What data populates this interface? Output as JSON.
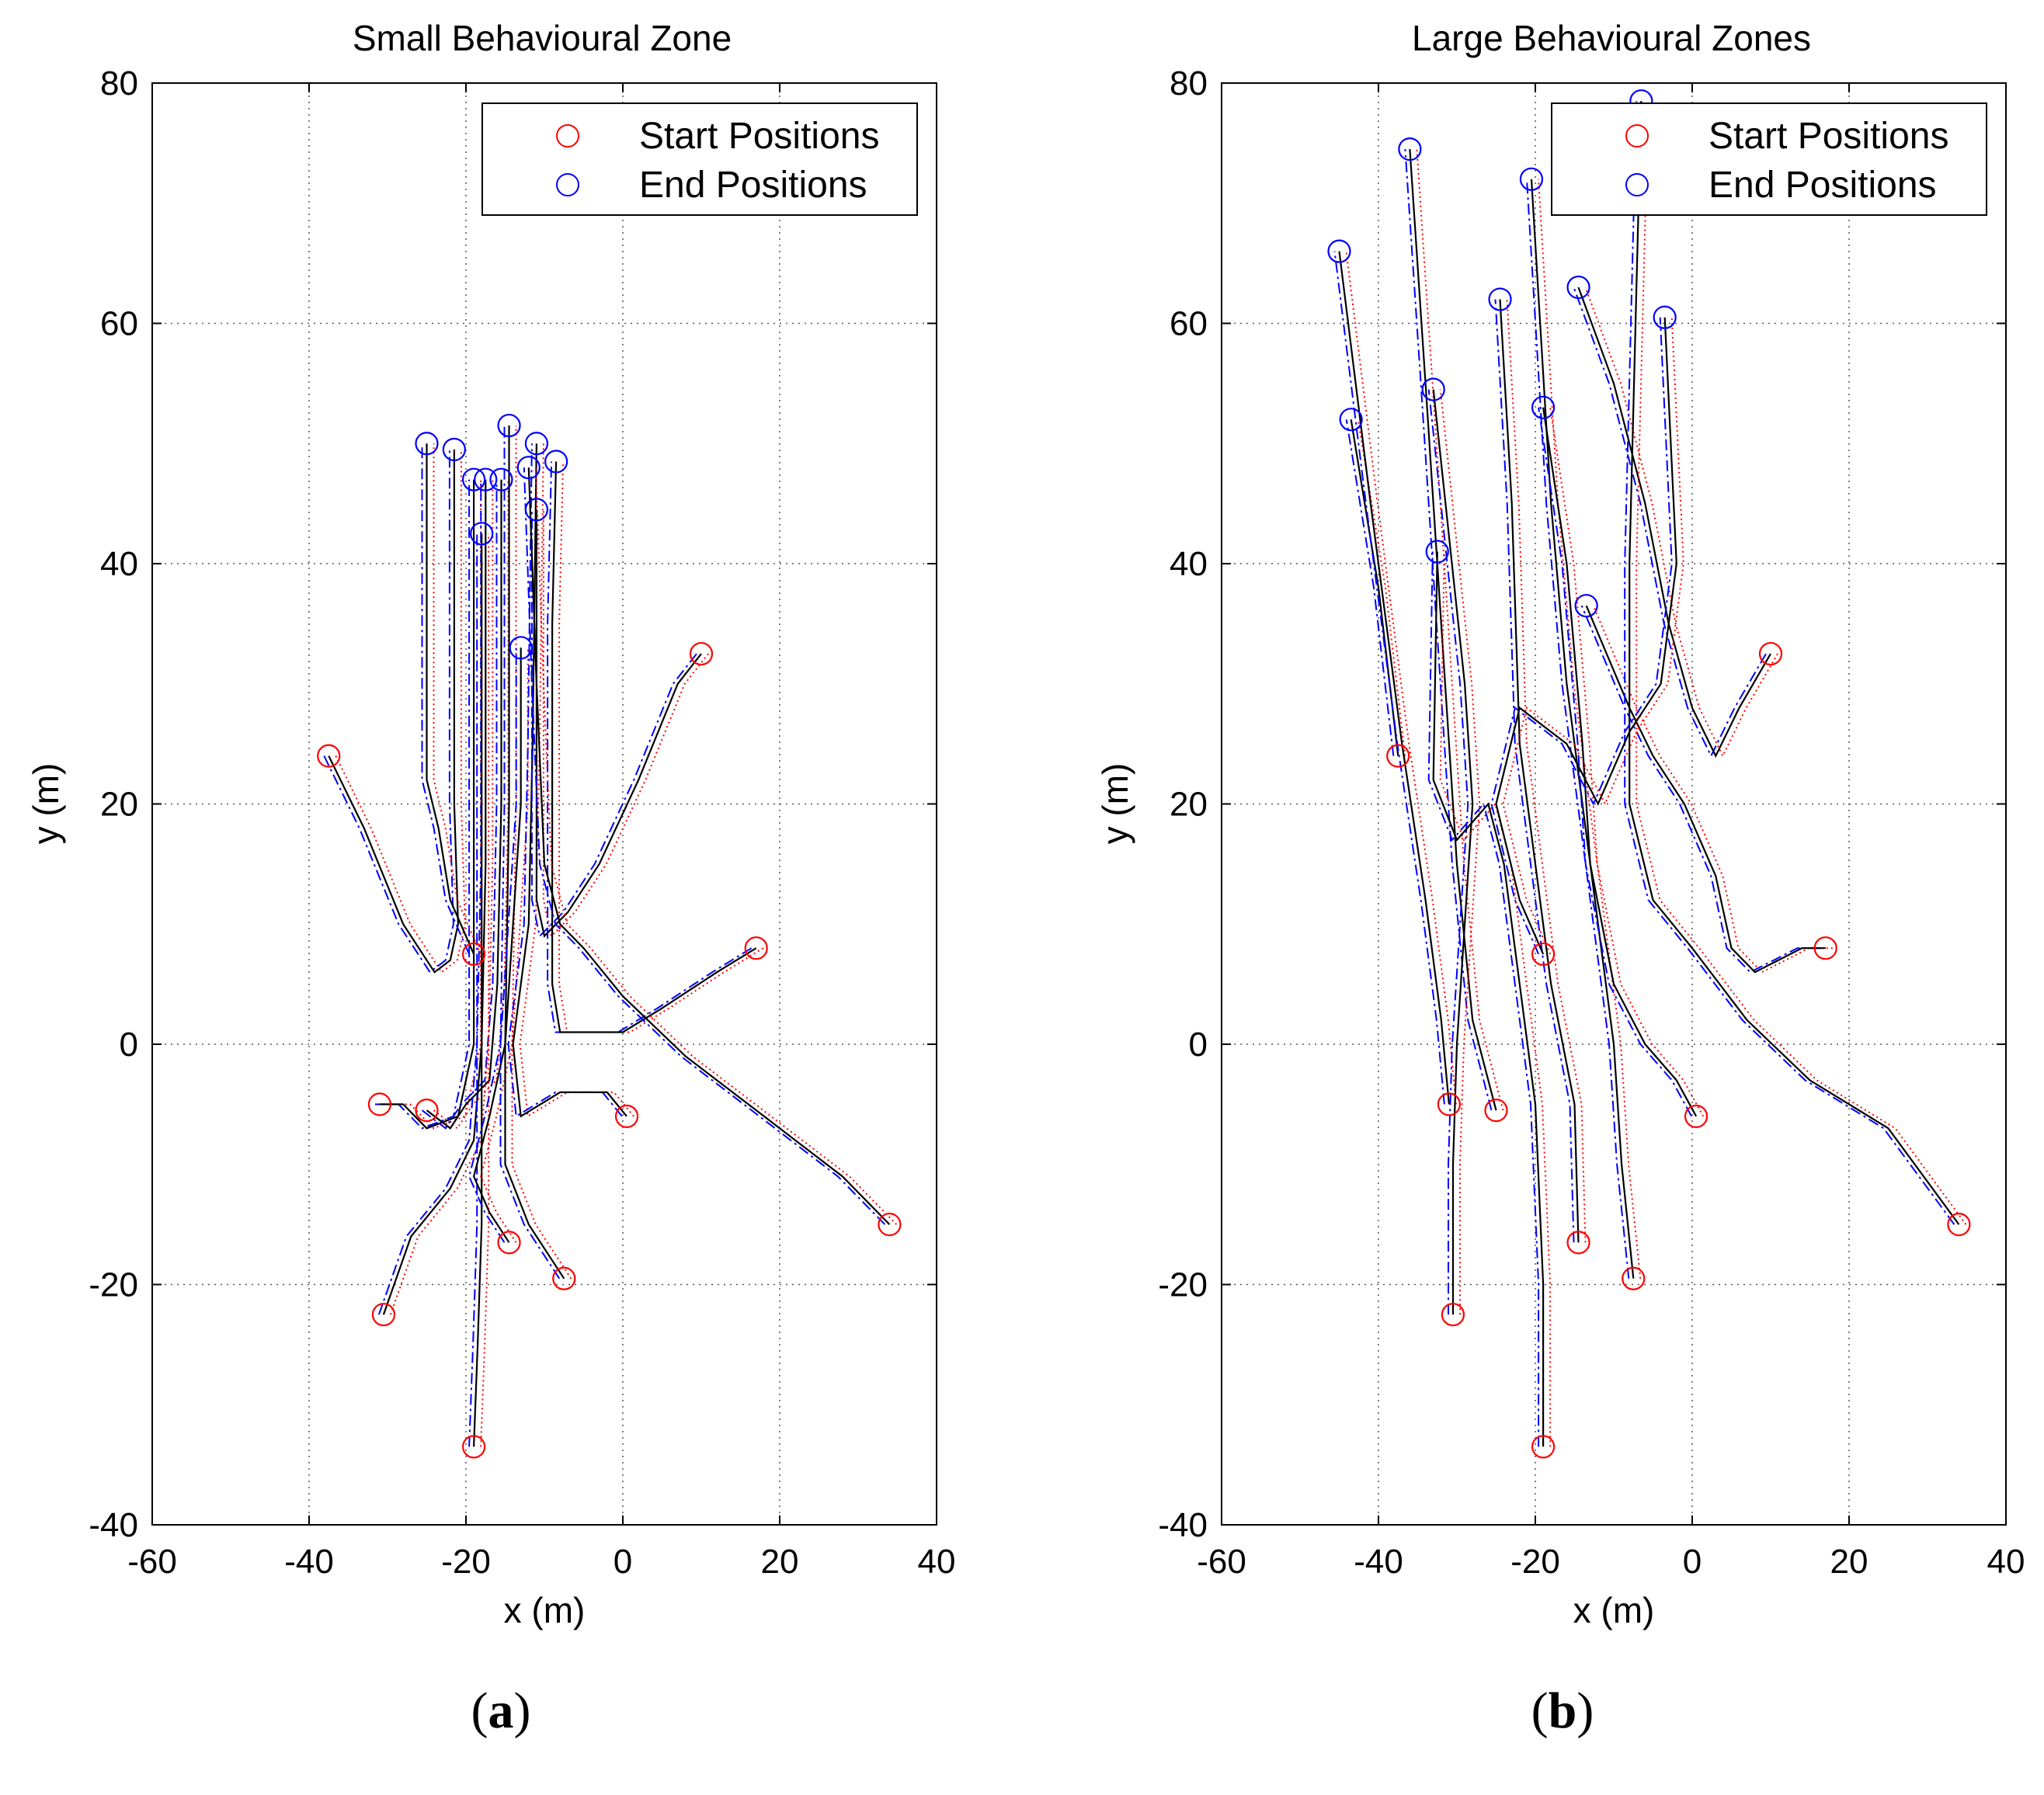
{
  "chart_data": [
    {
      "type": "line",
      "panel_label": "a",
      "title": "Small Behavioural Zone",
      "xlabel": "x (m)",
      "ylabel": "y (m)",
      "xlim": [
        -60,
        40
      ],
      "ylim": [
        -40,
        80
      ],
      "xticks": [
        "-60",
        "-40",
        "-20",
        "0",
        "20",
        "40"
      ],
      "yticks": [
        "-40",
        "-20",
        "0",
        "20",
        "40",
        "60",
        "80"
      ],
      "grid": true,
      "legend": {
        "location": "top-right",
        "entries": [
          "Start Positions",
          "End Positions"
        ]
      },
      "colors": {
        "start": "#ff0000",
        "end": "#0000ff",
        "path_black": "#000000",
        "path_blue": "#0000ff",
        "path_red": "#ff0000"
      },
      "start_positions": [
        [
          -37.5,
          24
        ],
        [
          -31,
          -5
        ],
        [
          -25,
          -5.5
        ],
        [
          -30.5,
          -22.5
        ],
        [
          -19,
          -33.5
        ],
        [
          -14.5,
          -16.5
        ],
        [
          -7.5,
          -19.5
        ],
        [
          0.5,
          -6
        ],
        [
          10,
          32.5
        ],
        [
          17,
          8
        ],
        [
          34,
          -15
        ],
        [
          -19,
          7.5
        ]
      ],
      "end_positions": [
        [
          -25,
          50
        ],
        [
          -21.5,
          49.5
        ],
        [
          -19,
          47
        ],
        [
          -17.5,
          47
        ],
        [
          -15.5,
          47
        ],
        [
          -14.5,
          51.5
        ],
        [
          -12,
          48
        ],
        [
          -11,
          50
        ],
        [
          -8.5,
          48.5
        ],
        [
          -11,
          44.5
        ],
        [
          -18,
          42.5
        ],
        [
          -13,
          33
        ]
      ],
      "trajectories": [
        [
          [
            -37.5,
            24
          ],
          [
            -33,
            18
          ],
          [
            -28,
            10
          ],
          [
            -24,
            6
          ],
          [
            -22,
            7
          ],
          [
            -21,
            10
          ],
          [
            -21.5,
            20
          ],
          [
            -21.5,
            35
          ],
          [
            -21.5,
            49.5
          ]
        ],
        [
          [
            -31,
            -5
          ],
          [
            -28,
            -5
          ],
          [
            -25,
            -7
          ],
          [
            -21,
            -6
          ],
          [
            -19,
            0
          ],
          [
            -19,
            10
          ],
          [
            -19,
            25
          ],
          [
            -19,
            47
          ]
        ],
        [
          [
            -25,
            -5.5
          ],
          [
            -22,
            -7
          ],
          [
            -20,
            -5
          ],
          [
            -17,
            -3
          ],
          [
            -16,
            5
          ],
          [
            -15.5,
            20
          ],
          [
            -15.5,
            35
          ],
          [
            -15.5,
            47
          ]
        ],
        [
          [
            -30.5,
            -22.5
          ],
          [
            -27,
            -16
          ],
          [
            -22,
            -12
          ],
          [
            -19,
            -8
          ],
          [
            -18,
            0
          ],
          [
            -17.5,
            15
          ],
          [
            -17.5,
            30
          ],
          [
            -17.5,
            47
          ]
        ],
        [
          [
            -19,
            -33.5
          ],
          [
            -18.5,
            -25
          ],
          [
            -18,
            -15
          ],
          [
            -18,
            -5
          ],
          [
            -18,
            10
          ],
          [
            -18,
            25
          ],
          [
            -18,
            42.5
          ]
        ],
        [
          [
            -14.5,
            -16.5
          ],
          [
            -17,
            -14
          ],
          [
            -19,
            -11
          ],
          [
            -17,
            -6
          ],
          [
            -15,
            0
          ],
          [
            -14.5,
            20
          ],
          [
            -14.5,
            35
          ],
          [
            -14.5,
            51.5
          ]
        ],
        [
          [
            -7.5,
            -19.5
          ],
          [
            -12,
            -15
          ],
          [
            -15,
            -10
          ],
          [
            -15,
            0
          ],
          [
            -14,
            10
          ],
          [
            -13,
            20
          ],
          [
            -13,
            33
          ]
        ],
        [
          [
            0.5,
            -6
          ],
          [
            -2,
            -4
          ],
          [
            -8,
            -4
          ],
          [
            -13,
            -6
          ],
          [
            -14,
            0
          ],
          [
            -12,
            10
          ],
          [
            -11.5,
            25
          ],
          [
            -11,
            50
          ]
        ],
        [
          [
            10,
            32.5
          ],
          [
            7,
            30
          ],
          [
            2,
            22
          ],
          [
            -3,
            15
          ],
          [
            -7,
            11
          ],
          [
            -10,
            9
          ],
          [
            -11,
            12
          ],
          [
            -11,
            25
          ],
          [
            -11,
            44.5
          ]
        ],
        [
          [
            17,
            8
          ],
          [
            12,
            6
          ],
          [
            5,
            3
          ],
          [
            0,
            1
          ],
          [
            -4,
            1
          ],
          [
            -8,
            1
          ],
          [
            -9,
            5
          ],
          [
            -9,
            20
          ],
          [
            -9,
            35
          ],
          [
            -8.5,
            48.5
          ]
        ],
        [
          [
            34,
            -15
          ],
          [
            28,
            -11
          ],
          [
            18,
            -6
          ],
          [
            8,
            -1
          ],
          [
            0,
            4
          ],
          [
            -5,
            8
          ],
          [
            -8,
            10
          ],
          [
            -10,
            15
          ],
          [
            -11,
            30
          ],
          [
            -12,
            48
          ]
        ],
        [
          [
            -19,
            7.5
          ],
          [
            -22,
            12
          ],
          [
            -23.5,
            18
          ],
          [
            -25,
            22
          ],
          [
            -25,
            35
          ],
          [
            -25,
            50
          ]
        ]
      ]
    },
    {
      "type": "line",
      "panel_label": "b",
      "title": "Large Behavioural Zones",
      "xlabel": "x (m)",
      "ylabel": "y (m)",
      "xlim": [
        -60,
        40
      ],
      "ylim": [
        -40,
        80
      ],
      "xticks": [
        "-60",
        "-40",
        "-20",
        "0",
        "20",
        "40"
      ],
      "yticks": [
        "-40",
        "-20",
        "0",
        "20",
        "40",
        "60",
        "80"
      ],
      "grid": true,
      "legend": {
        "location": "top-right",
        "entries": [
          "Start Positions",
          "End Positions"
        ]
      },
      "colors": {
        "start": "#ff0000",
        "end": "#0000ff",
        "path_black": "#000000",
        "path_blue": "#0000ff",
        "path_red": "#ff0000"
      },
      "start_positions": [
        [
          -37.5,
          24
        ],
        [
          -31,
          -5
        ],
        [
          -25,
          -5.5
        ],
        [
          -30.5,
          -22.5
        ],
        [
          -19,
          -33.5
        ],
        [
          -14.5,
          -16.5
        ],
        [
          -7.5,
          -19.5
        ],
        [
          0.5,
          -6
        ],
        [
          10,
          32.5
        ],
        [
          17,
          8
        ],
        [
          34,
          -15
        ],
        [
          -19,
          7.5
        ]
      ],
      "end_positions": [
        [
          -45,
          66
        ],
        [
          -43.5,
          52
        ],
        [
          -36,
          74.5
        ],
        [
          -33,
          54.5
        ],
        [
          -32.5,
          41
        ],
        [
          -24.5,
          62
        ],
        [
          -20.5,
          72
        ],
        [
          -19,
          53
        ],
        [
          -14.5,
          63
        ],
        [
          -13.5,
          36.5
        ],
        [
          -6.5,
          78.5
        ],
        [
          -3.5,
          60.5
        ]
      ],
      "trajectories": [
        [
          [
            -37.5,
            24
          ],
          [
            -40,
            38
          ],
          [
            -43.5,
            52
          ]
        ],
        [
          [
            -31,
            -5
          ],
          [
            -32,
            2
          ],
          [
            -34,
            12
          ],
          [
            -37,
            25
          ],
          [
            -41,
            45
          ],
          [
            -45,
            66
          ]
        ],
        [
          [
            -25,
            -5.5
          ],
          [
            -28,
            2
          ],
          [
            -30,
            15
          ],
          [
            -32,
            35
          ],
          [
            -34,
            55
          ],
          [
            -36,
            74.5
          ]
        ],
        [
          [
            -30.5,
            -22.5
          ],
          [
            -30.5,
            -10
          ],
          [
            -30,
            0
          ],
          [
            -29,
            10
          ],
          [
            -28,
            20
          ],
          [
            -29,
            30
          ],
          [
            -33,
            54.5
          ]
        ],
        [
          [
            -19,
            -33.5
          ],
          [
            -19,
            -20
          ],
          [
            -20,
            -5
          ],
          [
            -22,
            5
          ],
          [
            -24,
            15
          ],
          [
            -26,
            20
          ],
          [
            -30,
            17
          ],
          [
            -33,
            22
          ],
          [
            -32.5,
            41
          ]
        ],
        [
          [
            -14.5,
            -16.5
          ],
          [
            -15,
            -5
          ],
          [
            -18,
            5
          ],
          [
            -20,
            15
          ],
          [
            -22,
            25
          ],
          [
            -23,
            45
          ],
          [
            -24.5,
            62
          ]
        ],
        [
          [
            -7.5,
            -19.5
          ],
          [
            -9,
            -10
          ],
          [
            -10,
            0
          ],
          [
            -12,
            10
          ],
          [
            -14,
            20
          ],
          [
            -16,
            30
          ],
          [
            -18,
            45
          ],
          [
            -20.5,
            72
          ]
        ],
        [
          [
            0.5,
            -6
          ],
          [
            -2,
            -3
          ],
          [
            -6,
            0
          ],
          [
            -10,
            5
          ],
          [
            -13,
            15
          ],
          [
            -14,
            25
          ],
          [
            -16,
            40
          ],
          [
            -19,
            53
          ]
        ],
        [
          [
            10,
            32.5
          ],
          [
            6,
            28
          ],
          [
            3,
            24
          ],
          [
            0,
            28
          ],
          [
            -3,
            35
          ],
          [
            -6,
            45
          ],
          [
            -10,
            55
          ],
          [
            -14.5,
            63
          ]
        ],
        [
          [
            17,
            8
          ],
          [
            14,
            8
          ],
          [
            8,
            6
          ],
          [
            5,
            8
          ],
          [
            3,
            14
          ],
          [
            -1,
            20
          ],
          [
            -5,
            24
          ],
          [
            -8,
            28
          ],
          [
            -13.5,
            36.5
          ]
        ],
        [
          [
            34,
            -15
          ],
          [
            25,
            -7
          ],
          [
            15,
            -3
          ],
          [
            7,
            2
          ],
          [
            0,
            8
          ],
          [
            -5,
            12
          ],
          [
            -8,
            20
          ],
          [
            -8,
            40
          ],
          [
            -6.5,
            78.5
          ]
        ],
        [
          [
            -19,
            7.5
          ],
          [
            -22,
            12
          ],
          [
            -25,
            20
          ],
          [
            -22,
            28
          ],
          [
            -16,
            25
          ],
          [
            -12,
            20
          ],
          [
            -8,
            26
          ],
          [
            -4,
            30
          ],
          [
            -2,
            40
          ],
          [
            -3.5,
            60.5
          ]
        ]
      ]
    }
  ]
}
